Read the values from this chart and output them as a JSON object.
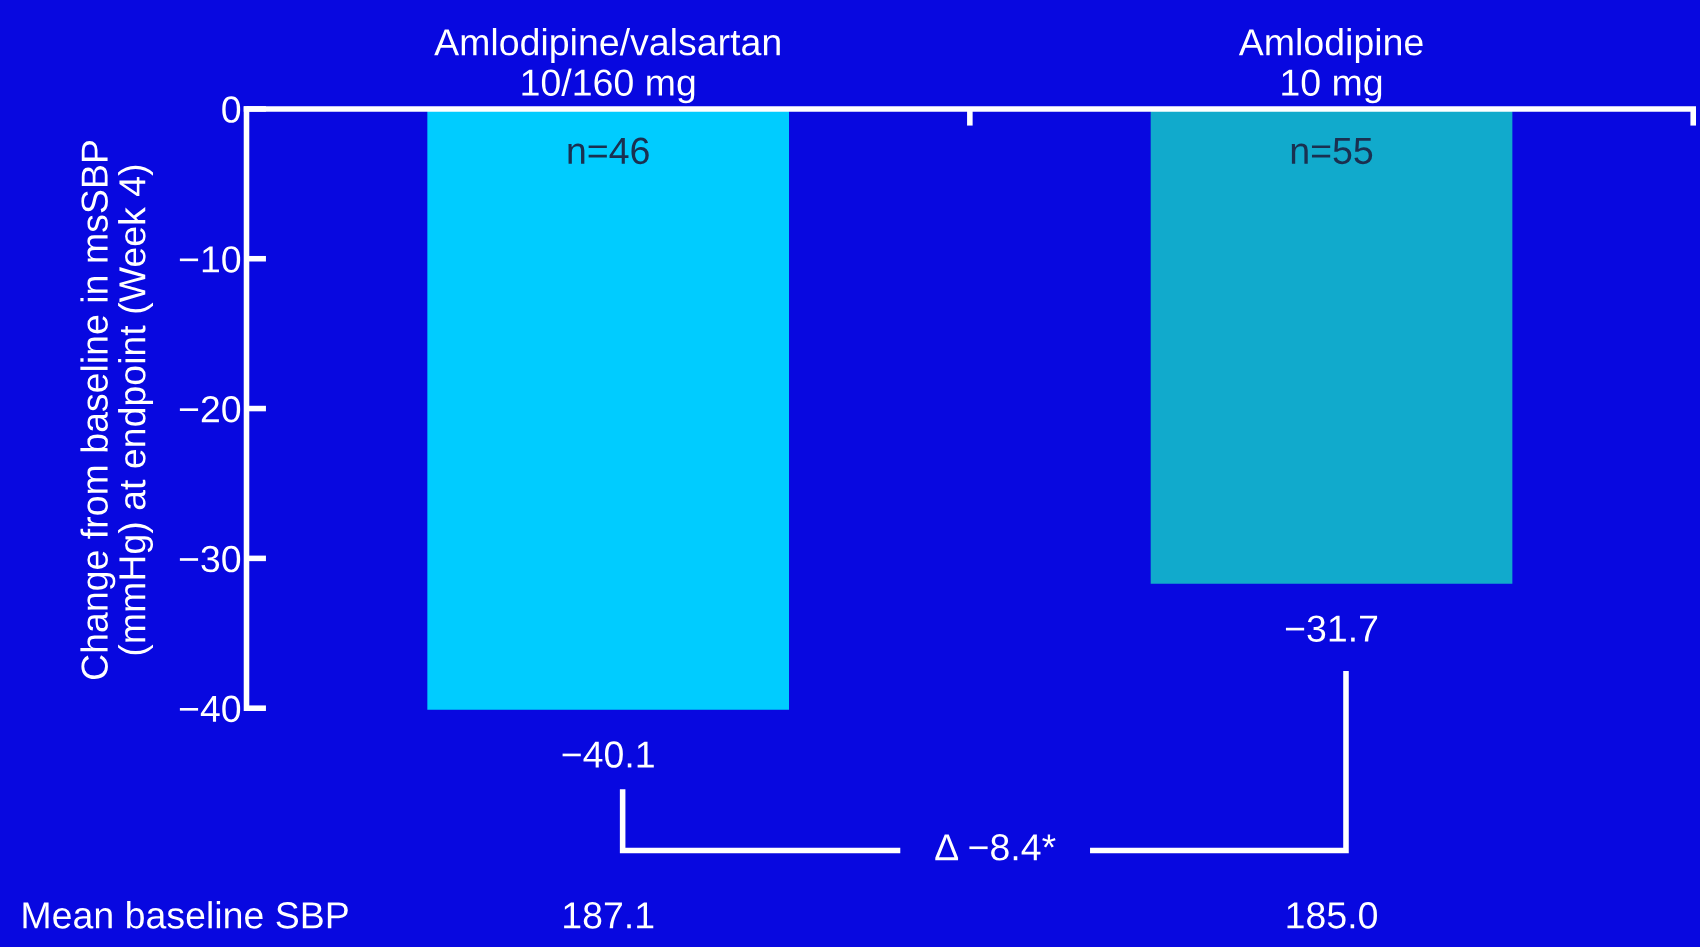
{
  "chart_data": {
    "type": "bar",
    "categories": [
      "Amlodipine/valsartan\n10/160 mg",
      "Amlodipine\n10 mg"
    ],
    "values": [
      -40.1,
      -31.7
    ],
    "colors": [
      "#00ccff",
      "#11aacc"
    ],
    "value_labels": [
      "−40.1",
      "−31.7"
    ],
    "ylabel": "Change from baseline in msSBP\n(mmHg) at endpoint (Week 4)",
    "ylim": [
      -40.2,
      0
    ],
    "yticks": [
      {
        "value": 0,
        "label": "0"
      },
      {
        "value": -10,
        "label": "−10"
      },
      {
        "value": -20,
        "label": "−20"
      },
      {
        "value": -30,
        "label": "−30"
      },
      {
        "value": -40,
        "label": "−40"
      }
    ],
    "annotations": [
      "n=46",
      "n=55",
      "Δ −8.4*",
      "Mean baseline SBP",
      "187.1",
      "185.0"
    ],
    "grid": false,
    "legend": false
  }
}
